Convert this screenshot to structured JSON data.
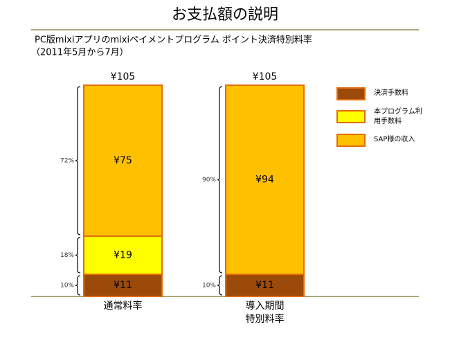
{
  "title": "お支払額の説明",
  "subtitle": [
    "PC版mixiアプリのmixiペイメントプログラム ポイント決済特別料率",
    "（2011年5月から7月）"
  ],
  "chart_data": {
    "type": "bar",
    "stacked": true,
    "categories": [
      [
        "通常料率"
      ],
      [
        "導入期間",
        "特別料率"
      ]
    ],
    "totals": [
      105,
      105
    ],
    "total_labels": [
      "¥105",
      "¥105"
    ],
    "series": [
      {
        "name": "決済手数料",
        "color": "#9c4a0a",
        "values": [
          11,
          11
        ],
        "value_labels": [
          "¥11",
          "¥11"
        ],
        "share_labels": [
          "10%",
          "10%"
        ]
      },
      {
        "name": "本プログラム利用手数料",
        "color": "#ffff00",
        "values": [
          19,
          null
        ],
        "value_labels": [
          "¥19",
          null
        ],
        "share_labels": [
          "18%",
          null
        ]
      },
      {
        "name": "SAP様の収入",
        "color": "#ffc000",
        "values": [
          75,
          94
        ],
        "value_labels": [
          "¥75",
          "¥94"
        ],
        "share_labels": [
          "72%",
          "90%"
        ]
      }
    ],
    "legend": "right"
  }
}
